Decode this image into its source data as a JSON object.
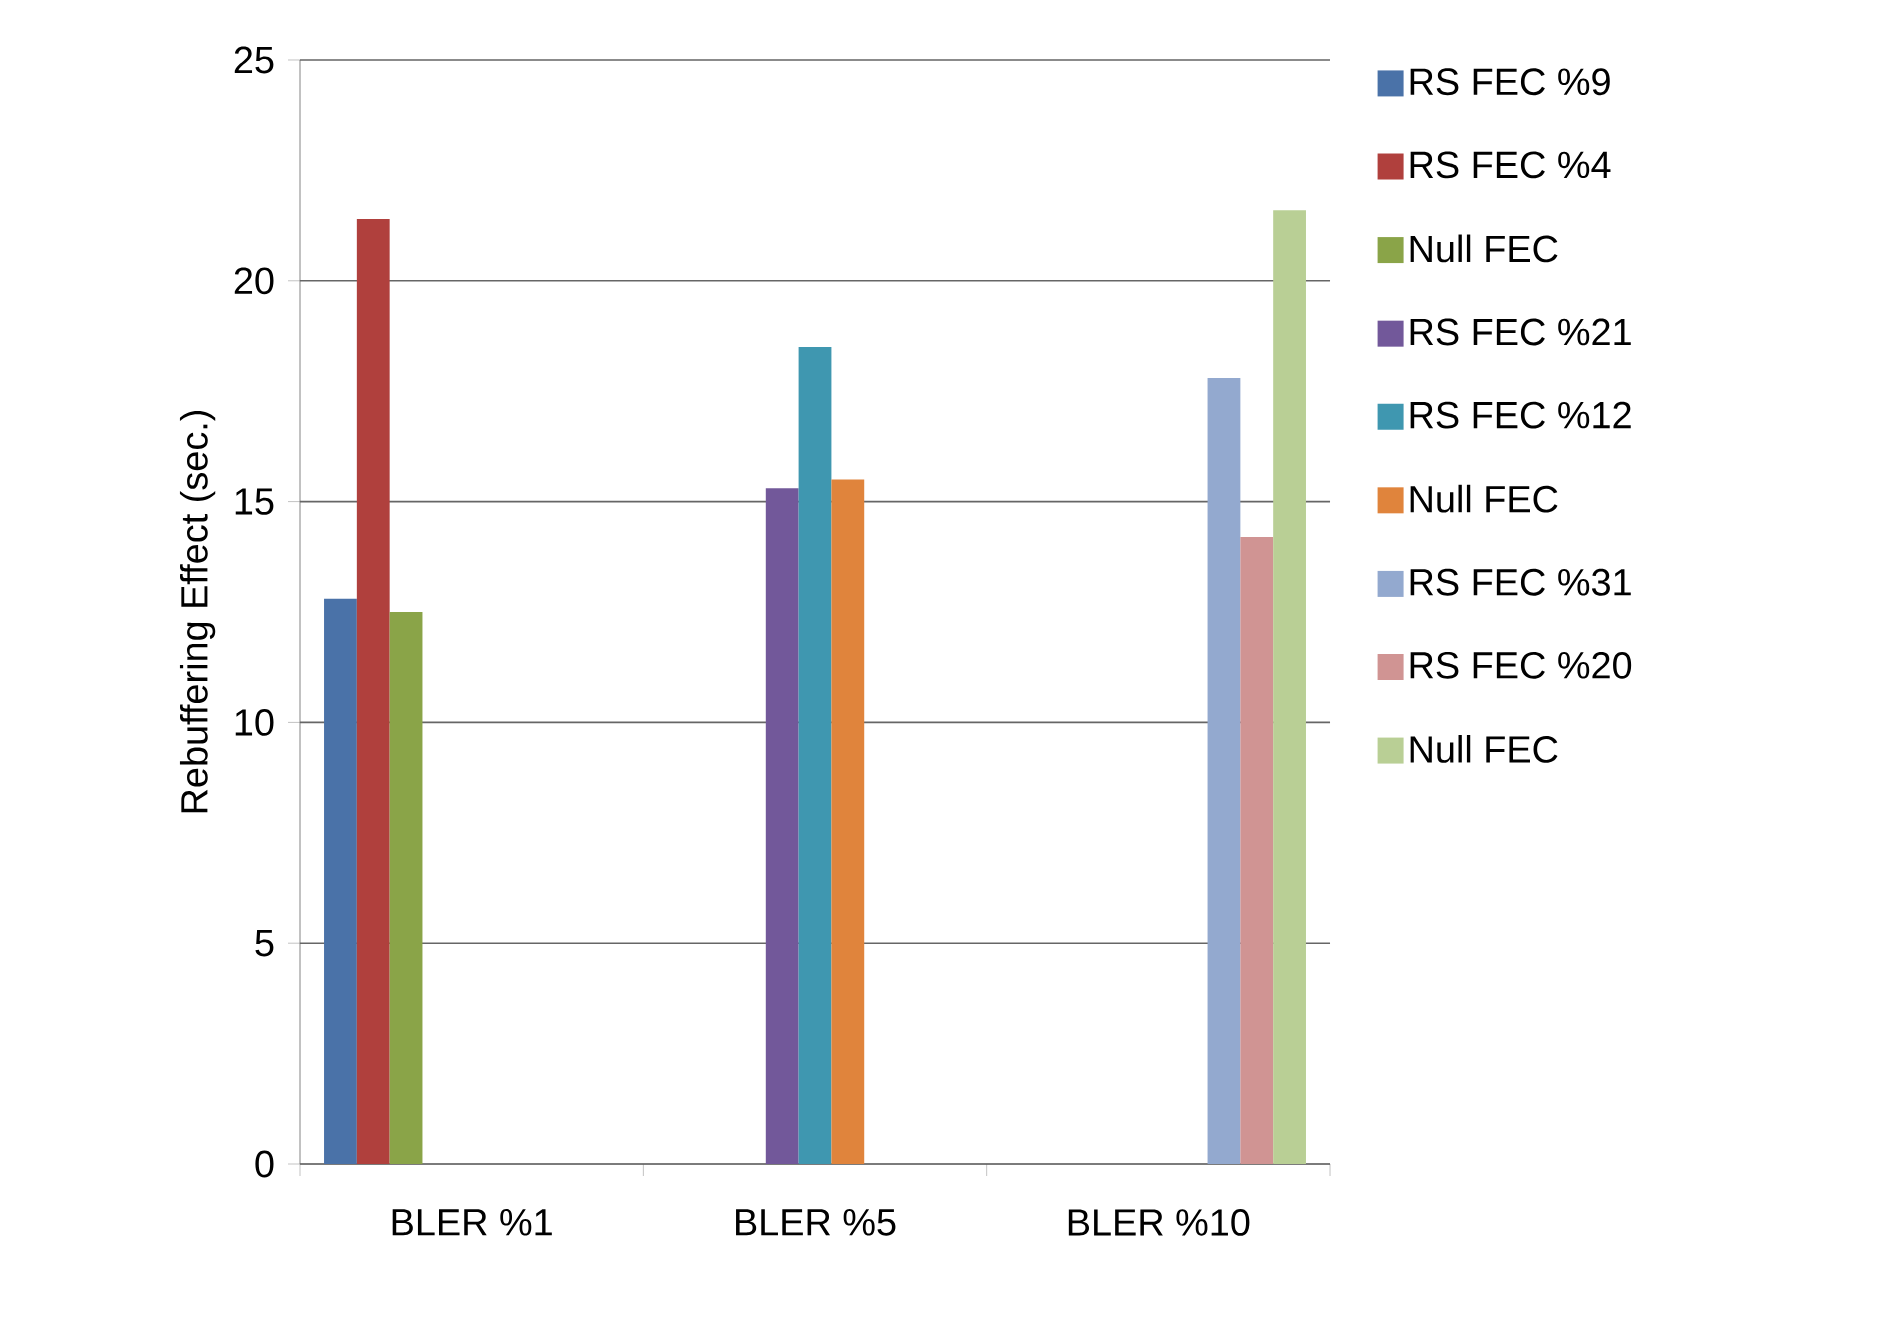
{
  "chart_data": {
    "type": "bar",
    "ylabel": "Rebuffering Effect (sec.)",
    "categories": [
      "BLER %1",
      "BLER %5",
      "BLER %10"
    ],
    "series": [
      {
        "name": "RS FEC %9",
        "color": "#4a72a8",
        "values": [
          12.8,
          null,
          null
        ]
      },
      {
        "name": "RS FEC %4",
        "color": "#b0403d",
        "values": [
          21.4,
          null,
          null
        ]
      },
      {
        "name": "Null FEC",
        "color": "#8aa448",
        "values": [
          12.5,
          null,
          null
        ]
      },
      {
        "name": "RS FEC %21",
        "color": "#72589a",
        "values": [
          null,
          15.3,
          null
        ]
      },
      {
        "name": "RS FEC %12",
        "color": "#3f97b0",
        "values": [
          null,
          18.5,
          null
        ]
      },
      {
        "name": "Null FEC",
        "color": "#e0843c",
        "values": [
          null,
          15.5,
          null
        ]
      },
      {
        "name": "RS FEC %31",
        "color": "#93a9cf",
        "values": [
          null,
          null,
          17.8
        ]
      },
      {
        "name": "RS FEC %20",
        "color": "#d09493",
        "values": [
          null,
          null,
          14.2
        ]
      },
      {
        "name": "Null FEC",
        "color": "#b9cf95",
        "values": [
          null,
          null,
          21.6
        ]
      }
    ],
    "ylim": [
      0,
      25
    ],
    "yticks": [
      0,
      5,
      10,
      15,
      20,
      25
    ],
    "grid": "y",
    "legend": "right"
  }
}
